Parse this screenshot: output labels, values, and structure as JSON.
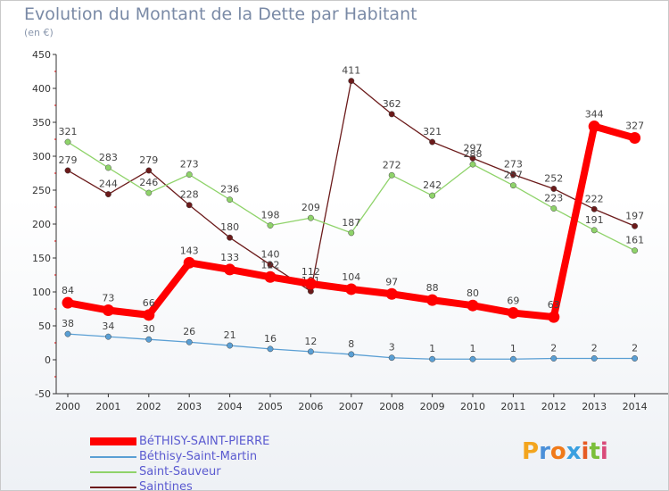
{
  "title": "Evolution du Montant de la Dette par Habitant",
  "unit": "(en €)",
  "logo": {
    "letters": [
      "P",
      "r",
      "o",
      "x",
      "i",
      "t",
      "i"
    ],
    "colors": [
      "#f3a51e",
      "#4a8fd8",
      "#f07a1a",
      "#3aa0e0",
      "#e65b24",
      "#7bbf3a",
      "#d94b7a"
    ]
  },
  "chart_data": {
    "type": "line",
    "x": [
      "2000",
      "2001",
      "2002",
      "2003",
      "2004",
      "2005",
      "2006",
      "2007",
      "2008",
      "2009",
      "2010",
      "2011",
      "2012",
      "2013",
      "2014"
    ],
    "ylim": [
      -50,
      450
    ],
    "yticks": [
      "-50",
      "0",
      "50",
      "100",
      "150",
      "200",
      "250",
      "300",
      "350",
      "400",
      "450"
    ],
    "grid": false,
    "legend_position": "bottom-left",
    "series": [
      {
        "name": "Saintines",
        "color": "#6b1a1a",
        "values": [
          279,
          244,
          279,
          228,
          180,
          140,
          101,
          411,
          362,
          321,
          297,
          273,
          252,
          222,
          197
        ],
        "labels": [
          "279",
          "244",
          "279",
          "228",
          "180",
          "140",
          "101",
          "411",
          "362",
          "321",
          "297",
          "273",
          "252",
          "222",
          "197"
        ]
      },
      {
        "name": "Saint-Sauveur",
        "color": "#8fd36a",
        "values": [
          321,
          283,
          246,
          273,
          236,
          198,
          209,
          187,
          272,
          242,
          288,
          257,
          223,
          191,
          161
        ],
        "labels": [
          "321",
          "283",
          "246",
          "273",
          "236",
          "198",
          "209",
          "187",
          "272",
          "242",
          "288",
          "257",
          "223",
          "191",
          "161"
        ]
      },
      {
        "name": "Béthisy-Saint-Martin",
        "color": "#5a9fd4",
        "values": [
          38,
          34,
          30,
          26,
          21,
          16,
          12,
          8,
          3,
          1,
          1,
          1,
          2,
          2,
          2
        ],
        "labels": [
          "38",
          "34",
          "30",
          "26",
          "21",
          "16",
          "12",
          "8",
          "3",
          "1",
          "1",
          "1",
          "2",
          "2",
          "2"
        ]
      },
      {
        "name": "BéTHISY-SAINT-PIERRE",
        "color": "#ff0000",
        "values": [
          84,
          73,
          66,
          143,
          133,
          122,
          112,
          104,
          97,
          88,
          80,
          69,
          63,
          344,
          327
        ],
        "labels": [
          "84",
          "73",
          "66",
          "143",
          "133",
          "122",
          "112",
          "104",
          "97",
          "88",
          "80",
          "69",
          "63",
          "344",
          "327"
        ]
      }
    ]
  },
  "legend": [
    {
      "label": "BéTHISY-SAINT-PIERRE",
      "color": "#ff0000",
      "text_color": "#5a5ad0"
    },
    {
      "label": "Béthisy-Saint-Martin",
      "color": "#5a9fd4",
      "text_color": "#5a5ad0"
    },
    {
      "label": "Saint-Sauveur",
      "color": "#8fd36a",
      "text_color": "#5a5ad0"
    },
    {
      "label": "Saintines",
      "color": "#6b1a1a",
      "text_color": "#5a5ad0"
    }
  ]
}
